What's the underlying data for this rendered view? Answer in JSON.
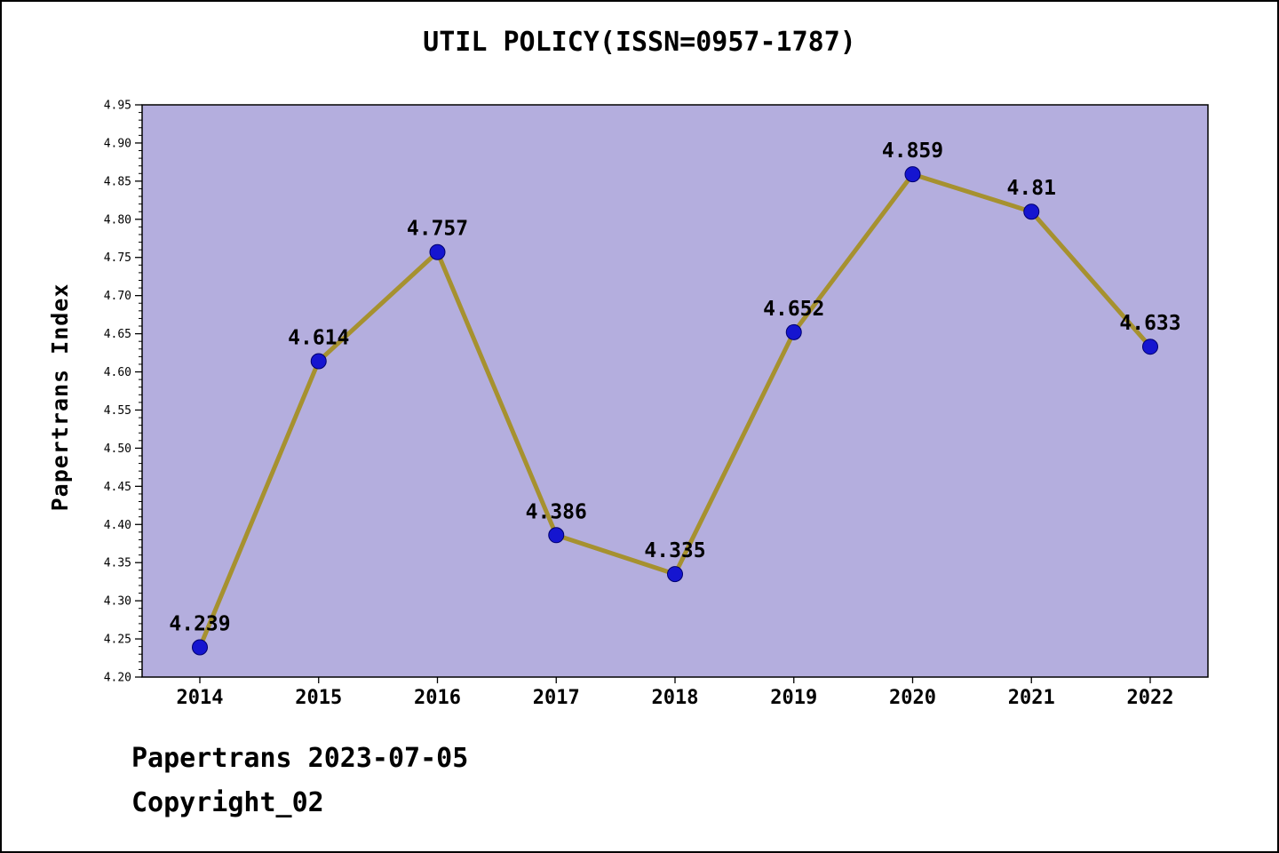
{
  "title": "UTIL POLICY(ISSN=0957-1787)",
  "footer": {
    "line1": "Papertrans 2023-07-05",
    "line2": "Copyright_02"
  },
  "chart_data": {
    "type": "line",
    "title": "UTIL POLICY(ISSN=0957-1787)",
    "xlabel": "",
    "ylabel": "Papertrans Index",
    "x": [
      2014,
      2015,
      2016,
      2017,
      2018,
      2019,
      2020,
      2021,
      2022
    ],
    "values": [
      4.239,
      4.614,
      4.757,
      4.386,
      4.335,
      4.652,
      4.859,
      4.81,
      4.633
    ],
    "point_labels": [
      "4.239",
      "4.614",
      "4.757",
      "4.386",
      "4.335",
      "4.652",
      "4.859",
      "4.81",
      "4.633"
    ],
    "xticks": [
      "2014",
      "2015",
      "2016",
      "2017",
      "2018",
      "2019",
      "2020",
      "2021",
      "2022"
    ],
    "yticks": [
      "4.20",
      "4.25",
      "4.30",
      "4.35",
      "4.40",
      "4.45",
      "4.50",
      "4.55",
      "4.60",
      "4.65",
      "4.70",
      "4.75",
      "4.80",
      "4.85",
      "4.90",
      "4.95"
    ],
    "ylim": [
      4.2,
      4.95
    ],
    "ytick_step": 0.05,
    "ytick_minor_step": 0.01,
    "grid": false,
    "legend_position": "none",
    "colors": {
      "plot_bg": "#b4aede",
      "line": "#a6912f",
      "marker": "#1515d0",
      "marker_edge": "#00006e",
      "text": "#000000",
      "page_bg": "#ffffff"
    }
  }
}
